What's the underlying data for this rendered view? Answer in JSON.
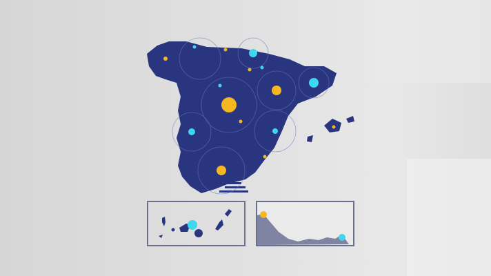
{
  "colors": {
    "land": "#2a3580",
    "land_light": "#3a4a9a",
    "yellow_dot": "#f5b820",
    "cyan_dot": "#3fd6f0",
    "background": "#dcdcdc",
    "inset_border": "#6a6f8c",
    "ceuta_melilla_fill": "#7f84a2"
  },
  "map": {
    "region": "Spain",
    "insets": [
      "canary-islands",
      "ceuta-melilla"
    ]
  }
}
